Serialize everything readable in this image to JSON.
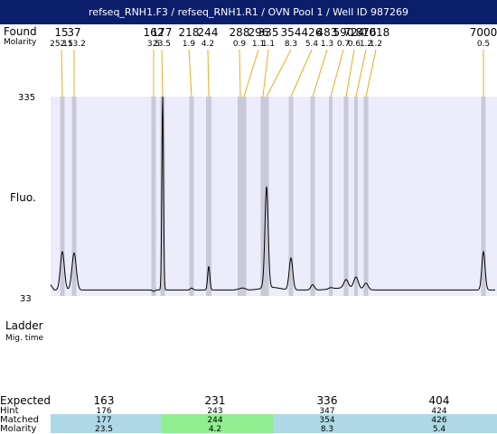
{
  "window": {
    "title": "refseq_RNH1.F3 / refseq_RNH1.R1 / OVN Pool 1 / Well ID 987269"
  },
  "labels": {
    "found": "Found",
    "molarity": "Molarity",
    "fluo": "Fluo.",
    "ladder": "Ladder",
    "mig_time": "Mig. time",
    "expected": "Expected",
    "hint": "Hint",
    "matched": "Matched",
    "molarity_row": "Molarity"
  },
  "colors": {
    "title_bar": "#0b1e6c",
    "plot_bg": "#ececfb",
    "peak_band": "#c9c9d7",
    "connector": "#f2a81d",
    "matched_default": "#add8e6",
    "matched_highlight": "#90ee90"
  },
  "chart_data": {
    "type": "line",
    "ylabel": "Fluo.",
    "y_ticks": [
      "335",
      "33"
    ],
    "ylim": [
      33,
      335
    ],
    "peaks": [
      {
        "found": "15",
        "molarity": "252.5",
        "height": 100
      },
      {
        "found": "37",
        "molarity": "113.2",
        "height": 98
      },
      {
        "found": "162",
        "molarity": "3.5",
        "height": 40
      },
      {
        "found": "177",
        "molarity": "23.5",
        "height": 335
      },
      {
        "found": "218",
        "molarity": "1.9",
        "height": 45
      },
      {
        "found": "244",
        "molarity": "4.2",
        "height": 78
      },
      {
        "found": "288",
        "molarity": "0.9",
        "height": 44
      },
      {
        "found": "296",
        "molarity": "1.1",
        "height": 44
      },
      {
        "found": "335",
        "molarity": "1.1",
        "height": 45
      },
      {
        "found": "354",
        "molarity": "8.3",
        "height": 195
      },
      {
        "found": "426",
        "molarity": "5.4",
        "height": 90
      },
      {
        "found": "483",
        "molarity": "1.3",
        "height": 50
      },
      {
        "found": "590",
        "molarity": "0.7",
        "height": 44
      },
      {
        "found": "724",
        "molarity": "0.6",
        "height": 55
      },
      {
        "found": "876",
        "molarity": "1.2",
        "height": 60
      },
      {
        "found": "1018",
        "molarity": "1.2",
        "height": 52
      },
      {
        "found": "7000",
        "molarity": "0.5",
        "height": 100
      }
    ],
    "expected_table": [
      {
        "expected": "163",
        "hint": "176",
        "matched": "177",
        "molarity": "23.5",
        "highlight": false
      },
      {
        "expected": "231",
        "hint": "243",
        "matched": "244",
        "molarity": "4.2",
        "highlight": true
      },
      {
        "expected": "336",
        "hint": "347",
        "matched": "354",
        "molarity": "8.3",
        "highlight": false
      },
      {
        "expected": "404",
        "hint": "424",
        "matched": "426",
        "molarity": "5.4",
        "highlight": false
      }
    ]
  }
}
